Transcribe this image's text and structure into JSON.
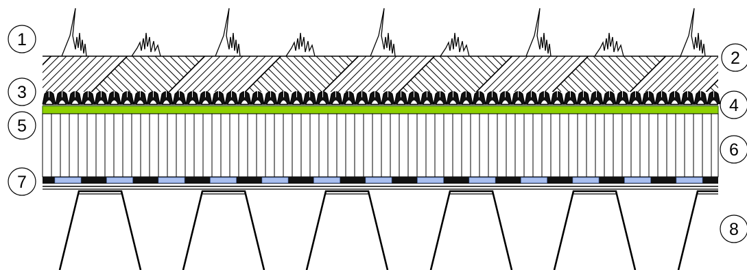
{
  "diagram": {
    "colors": {
      "stroke": "#000000",
      "background": "#ffffff",
      "filter_fleece": "#8fd100",
      "filter_fleece_edge": "#3d7a00",
      "insulation_slot": "#a9bff0",
      "insulation_slot_edge": "#4a6bb5",
      "black_bar": "#111111"
    },
    "callouts": [
      {
        "id": "1",
        "label": "1"
      },
      {
        "id": "2",
        "label": "2"
      },
      {
        "id": "3",
        "label": "3"
      },
      {
        "id": "4",
        "label": "4"
      },
      {
        "id": "5",
        "label": "5"
      },
      {
        "id": "6",
        "label": "6"
      },
      {
        "id": "7",
        "label": "7"
      },
      {
        "id": "8",
        "label": "8"
      }
    ],
    "layers": [
      {
        "callout": "1",
        "name": "vegetation"
      },
      {
        "callout": "2",
        "name": "substrate"
      },
      {
        "callout": "3",
        "name": "drainage-element"
      },
      {
        "callout": "4",
        "name": "protection-layer"
      },
      {
        "callout": "5",
        "name": "filter-fleece"
      },
      {
        "callout": "6",
        "name": "insulation"
      },
      {
        "callout": "7",
        "name": "vapour-barrier"
      },
      {
        "callout": "8",
        "name": "trapezoidal-deck"
      }
    ]
  }
}
